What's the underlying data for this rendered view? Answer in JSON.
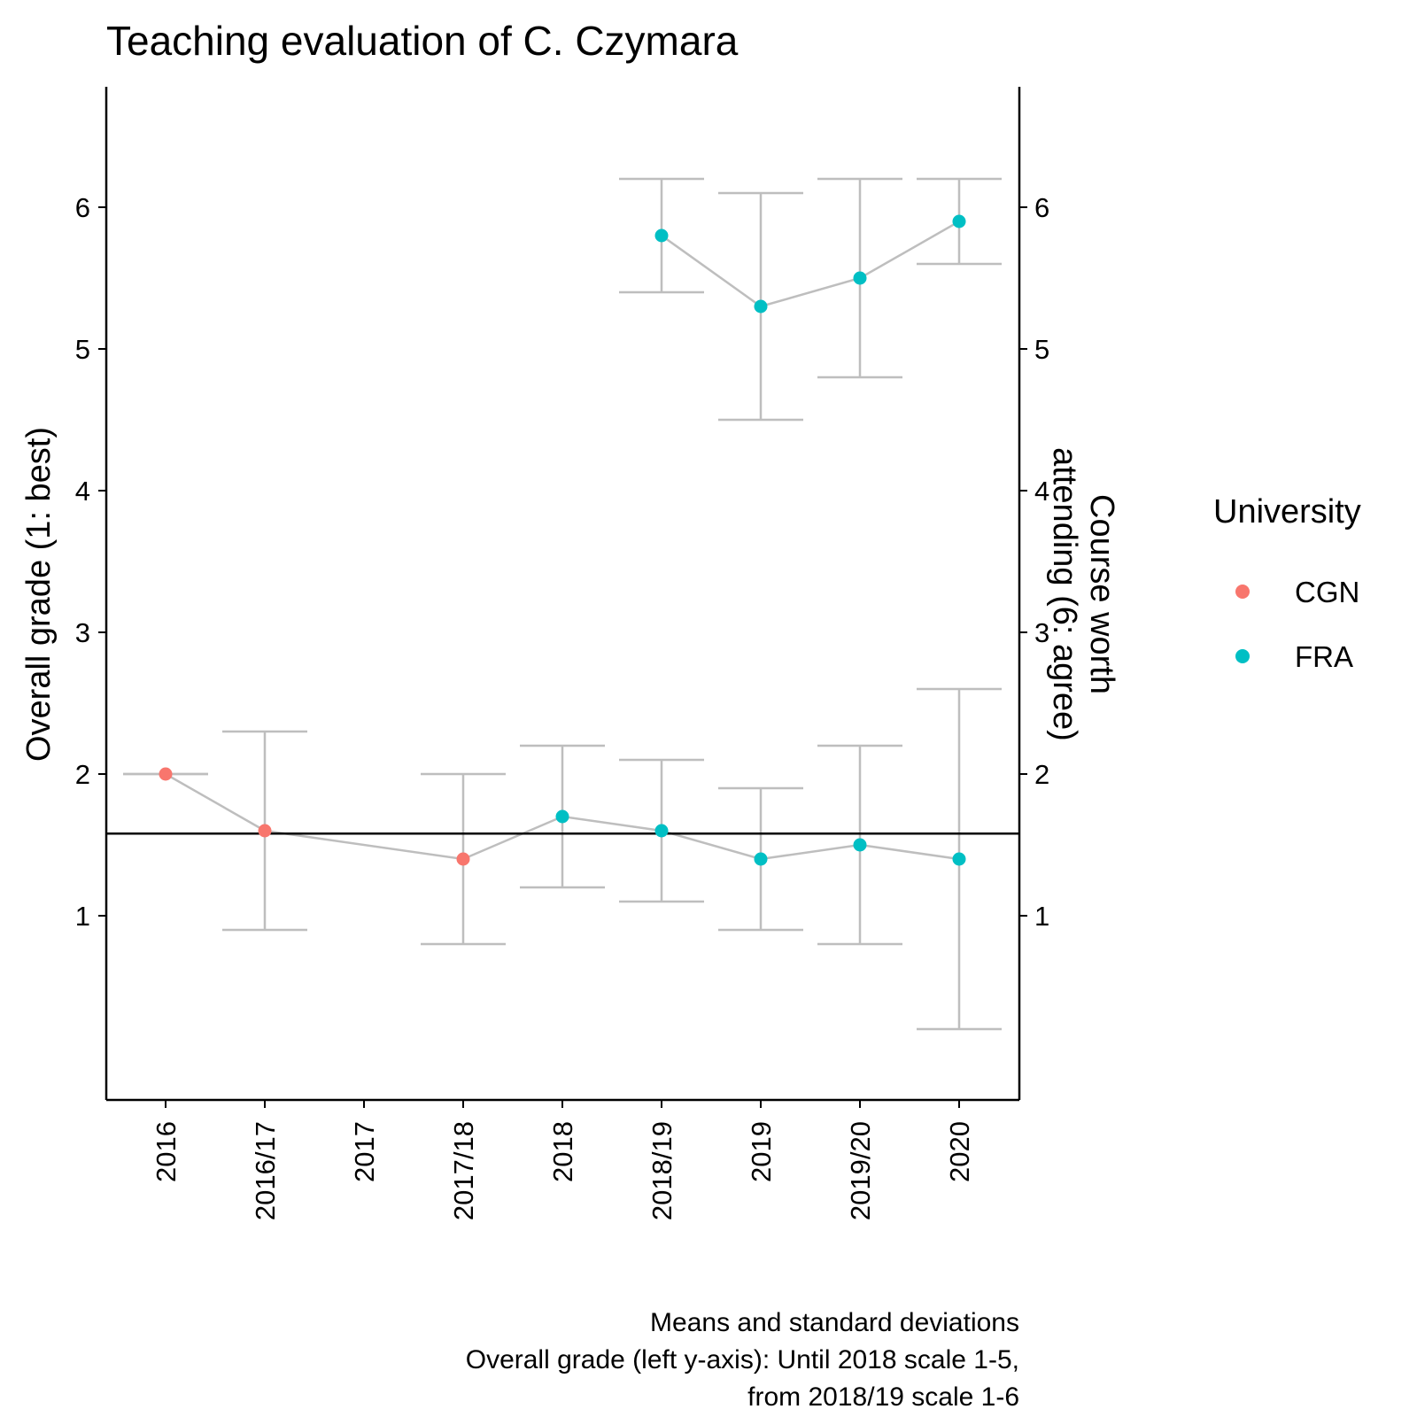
{
  "chart_data": {
    "type": "scatter",
    "title": "Teaching evaluation of C. Czymara",
    "ylabel_left": "Overall grade (1: best)",
    "ylabel_right_lines": [
      "Course worth",
      "attending (6: agree)"
    ],
    "categories": [
      "2016",
      "2016/17",
      "2017",
      "2017/18",
      "2018",
      "2018/19",
      "2019",
      "2019/20",
      "2020"
    ],
    "ylim": [
      -0.3,
      6.85
    ],
    "y_ticks": [
      1,
      2,
      3,
      4,
      5,
      6
    ],
    "reference_line": 1.58,
    "grid": false,
    "legend": {
      "title": "University",
      "position": "right",
      "entries": [
        {
          "label": "CGN",
          "color": "#F8766D"
        },
        {
          "label": "FRA",
          "color": "#00BFC4"
        }
      ]
    },
    "series": [
      {
        "metric": "overall_grade",
        "points": [
          {
            "x": "2016",
            "y": 2.0,
            "sd_low": 2.0,
            "sd_high": 2.0,
            "university": "CGN"
          },
          {
            "x": "2016/17",
            "y": 1.6,
            "sd_low": 0.9,
            "sd_high": 2.3,
            "university": "CGN"
          },
          {
            "x": "2017/18",
            "y": 1.4,
            "sd_low": 0.8,
            "sd_high": 2.0,
            "university": "CGN"
          },
          {
            "x": "2018",
            "y": 1.7,
            "sd_low": 1.2,
            "sd_high": 2.2,
            "university": "FRA"
          },
          {
            "x": "2018/19",
            "y": 1.6,
            "sd_low": 1.1,
            "sd_high": 2.1,
            "university": "FRA"
          },
          {
            "x": "2019",
            "y": 1.4,
            "sd_low": 0.9,
            "sd_high": 1.9,
            "university": "FRA"
          },
          {
            "x": "2019/20",
            "y": 1.5,
            "sd_low": 0.8,
            "sd_high": 2.2,
            "university": "FRA"
          },
          {
            "x": "2020",
            "y": 1.4,
            "sd_low": 0.2,
            "sd_high": 2.6,
            "university": "FRA"
          }
        ]
      },
      {
        "metric": "course_worth_attending",
        "points": [
          {
            "x": "2018/19",
            "y": 5.8,
            "sd_low": 5.4,
            "sd_high": 6.2,
            "university": "FRA"
          },
          {
            "x": "2019",
            "y": 5.3,
            "sd_low": 4.5,
            "sd_high": 6.1,
            "university": "FRA"
          },
          {
            "x": "2019/20",
            "y": 5.5,
            "sd_low": 4.8,
            "sd_high": 6.2,
            "university": "FRA"
          },
          {
            "x": "2020",
            "y": 5.9,
            "sd_low": 5.6,
            "sd_high": 6.2,
            "university": "FRA"
          }
        ]
      }
    ],
    "caption_lines": [
      "Means and standard deviations",
      "Overall grade (left y-axis): Until 2018 scale 1-5,",
      "from 2018/19 scale 1-6"
    ]
  }
}
